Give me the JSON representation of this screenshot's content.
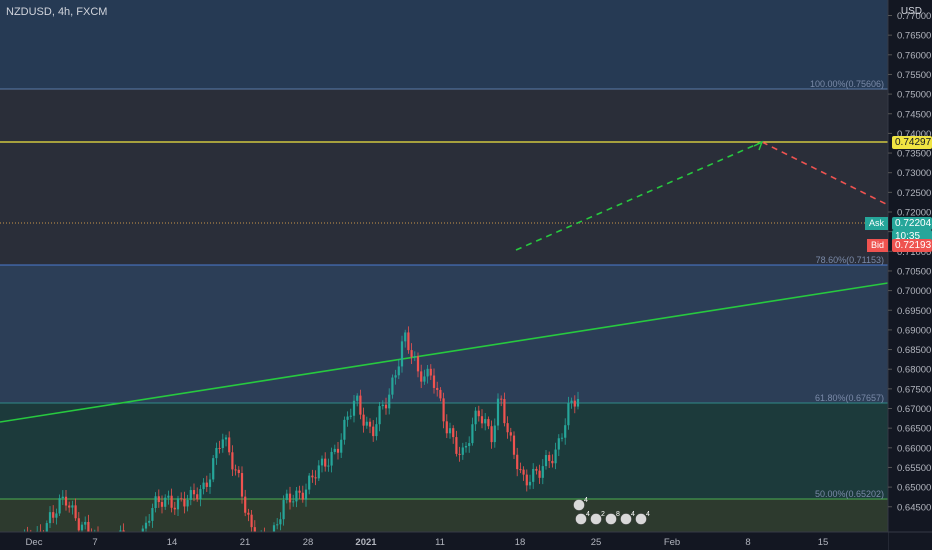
{
  "symbol": "NZDUSD, 4h, FXCM",
  "currency": "USD",
  "price_axis": {
    "ticks": [
      "0.77000",
      "0.76500",
      "0.76000",
      "0.75500",
      "0.75000",
      "0.74500",
      "0.74000",
      "0.73500",
      "0.73000",
      "0.72500",
      "0.72000",
      "0.71500",
      "0.71000",
      "0.70500",
      "0.70000",
      "0.69500",
      "0.69000",
      "0.68500",
      "0.68000",
      "0.67500",
      "0.67000",
      "0.66500",
      "0.66000",
      "0.65500",
      "0.65000",
      "0.64500"
    ]
  },
  "time_axis": {
    "labels": [
      "Dec",
      "7",
      "14",
      "21",
      "28",
      "2021",
      "11",
      "18",
      "25",
      "Feb",
      "8",
      "15"
    ]
  },
  "fib_levels": {
    "l100": "100.00%(0.75606)",
    "l786": "78.60%(0.71153)",
    "l618": "61.80%(0.67657)",
    "l50": "50.00%(0.65202)"
  },
  "price_tags": {
    "horizontal_line": "0.74297",
    "ask_label": "Ask",
    "ask_price": "0.72204",
    "countdown": "10:35",
    "bid_label": "Bid",
    "bid_price": "0.72193"
  },
  "event_badges": [
    "4",
    "4",
    "2",
    "8",
    "4",
    "4"
  ],
  "colors": {
    "background": "#131722",
    "up_candle": "#26a69a",
    "down_candle": "#ef5350",
    "yellow_line": "#f0e442",
    "trend_line": "#27c93f",
    "fib_line": "#4a7bd0",
    "zone_top": "#263a54",
    "zone_upper": "#2a2e39",
    "zone_mid": "#2c3e57",
    "zone_lower": "#1c3a3b"
  }
}
